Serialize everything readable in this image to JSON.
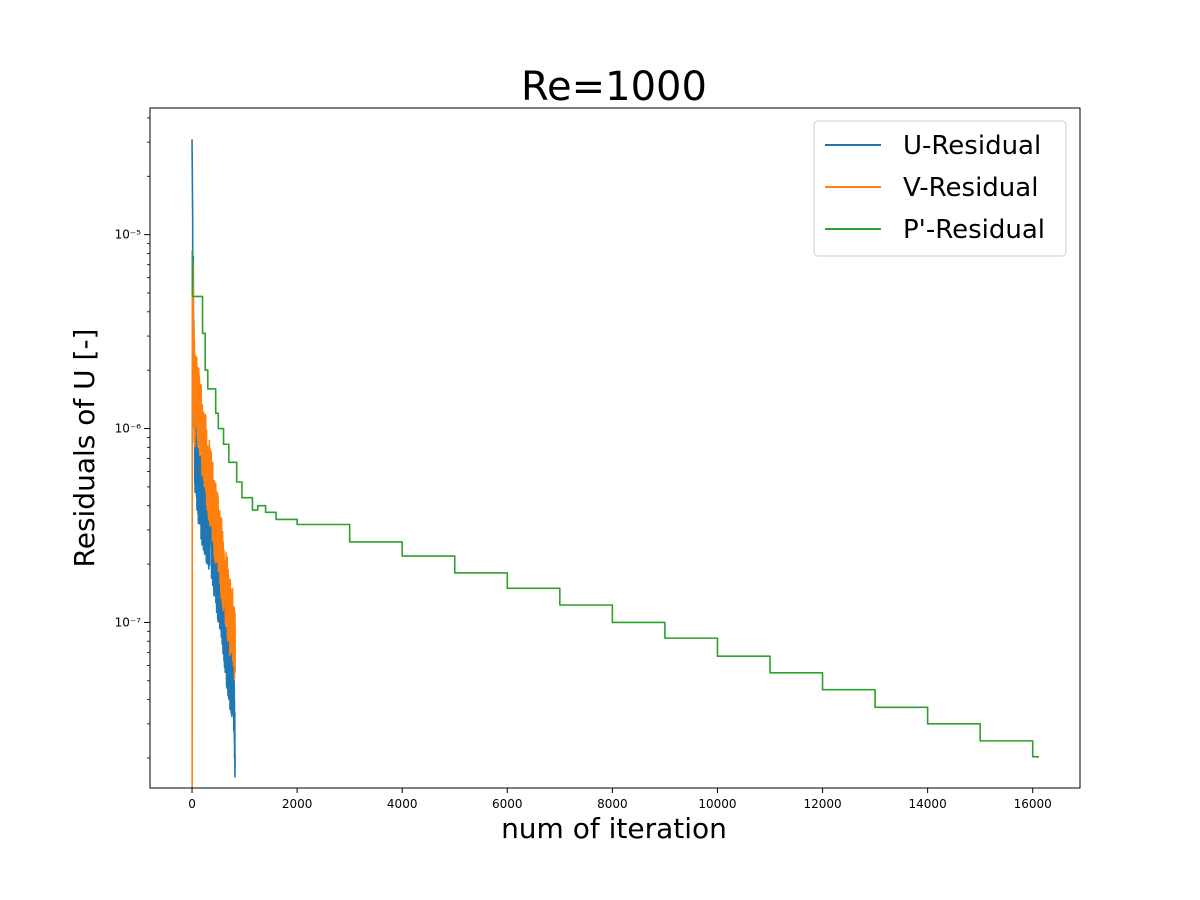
{
  "chart_data": {
    "type": "line",
    "title": "Re=1000",
    "xlabel": "num of iteration",
    "ylabel": "Residuals of U [-]",
    "xlim": [
      -800,
      16900
    ],
    "ylim": [
      1.4e-08,
      4.5e-05
    ],
    "yscale": "log",
    "grid": false,
    "legend_position": "top-right",
    "x_ticks": [
      0,
      2000,
      4000,
      6000,
      8000,
      10000,
      12000,
      14000,
      16000
    ],
    "y_ticks": [
      {
        "value": 1e-05,
        "label": "10⁻⁵"
      },
      {
        "value": 1e-06,
        "label": "10⁻⁶"
      },
      {
        "value": 1e-07,
        "label": "10⁻⁷"
      }
    ],
    "series": [
      {
        "name": "U-Residual",
        "color": "#1f77b4",
        "oscillating": true,
        "x": [
          0,
          10,
          30,
          60,
          100,
          200,
          300,
          400,
          500,
          600,
          700,
          800,
          820
        ],
        "y": [
          3.1e-05,
          1.4e-05,
          2.5e-06,
          8e-07,
          5.5e-07,
          4e-07,
          3.2e-07,
          2.4e-07,
          1.6e-07,
          1e-07,
          6.5e-08,
          4e-08,
          2.2e-08
        ]
      },
      {
        "name": "V-Residual",
        "color": "#ff7f0e",
        "oscillating": true,
        "x": [
          0,
          2,
          5,
          10,
          30,
          100,
          200,
          300,
          400,
          500,
          600,
          700,
          800,
          820
        ],
        "y": [
          1.4e-08,
          1.4e-08,
          8.5e-06,
          4e-06,
          2e-06,
          1.4e-06,
          9e-07,
          6e-07,
          4e-07,
          2.7e-07,
          1.8e-07,
          1.2e-07,
          8e-08,
          7e-08
        ]
      },
      {
        "name": "P'-Residual",
        "color": "#2ca02c",
        "oscillating": false,
        "x": [
          0,
          5,
          20,
          200,
          250,
          300,
          450,
          500,
          600,
          700,
          850,
          950,
          1150,
          1250,
          1400,
          1600,
          2000,
          3000,
          4000,
          5000,
          6000,
          7000,
          8000,
          9000,
          10000,
          11000,
          12000,
          13000,
          14000,
          15000,
          16000,
          16100
        ],
        "y": [
          8.3e-06,
          4.8e-06,
          4.8e-06,
          3.1e-06,
          2e-06,
          1.6e-06,
          1.2e-06,
          1e-06,
          8.3e-07,
          6.7e-07,
          5.3e-07,
          4.4e-07,
          3.8e-07,
          4e-07,
          3.7e-07,
          3.4e-07,
          3.2e-07,
          2.6e-07,
          2.2e-07,
          1.8e-07,
          1.5e-07,
          1.23e-07,
          1e-07,
          8.3e-08,
          6.7e-08,
          5.5e-08,
          4.5e-08,
          3.65e-08,
          3e-08,
          2.45e-08,
          2.03e-08,
          2e-08
        ]
      }
    ]
  }
}
